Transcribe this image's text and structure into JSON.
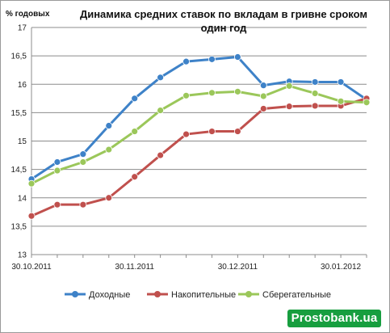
{
  "chart_data": {
    "type": "line",
    "title_lines": [
      "Динамика средних ставок по вкладам в гривне сроком",
      "один год"
    ],
    "ylabel": "% годовых",
    "xlabel": "",
    "ylim": [
      13,
      17
    ],
    "yticks": [
      "13",
      "13,5",
      "14",
      "14,5",
      "15",
      "15,5",
      "16",
      "16,5",
      "17"
    ],
    "xtick_labels": [
      {
        "label": "30.10.2011",
        "at": 0
      },
      {
        "label": "30.11.2011",
        "at": 4
      },
      {
        "label": "30.12.2011",
        "at": 8
      },
      {
        "label": "30.01.2012",
        "at": 12
      }
    ],
    "grid": true,
    "legend_position": "bottom",
    "series": [
      {
        "name": "Доходные",
        "color": "#3e82c8",
        "values": [
          14.33,
          14.63,
          14.77,
          15.27,
          15.75,
          16.12,
          16.4,
          16.44,
          16.48,
          15.98,
          16.05,
          16.04,
          16.04,
          15.73
        ]
      },
      {
        "name": "Накопительные",
        "color": "#c0504d",
        "values": [
          13.68,
          13.88,
          13.88,
          14.0,
          14.37,
          14.75,
          15.12,
          15.17,
          15.17,
          15.57,
          15.61,
          15.62,
          15.62,
          15.75
        ]
      },
      {
        "name": "Сберегательные",
        "color": "#9bc75a",
        "values": [
          14.25,
          14.48,
          14.63,
          14.85,
          15.17,
          15.54,
          15.8,
          15.85,
          15.87,
          15.79,
          15.97,
          15.84,
          15.7,
          15.68
        ]
      }
    ]
  },
  "watermark": "Prostobank.ua"
}
